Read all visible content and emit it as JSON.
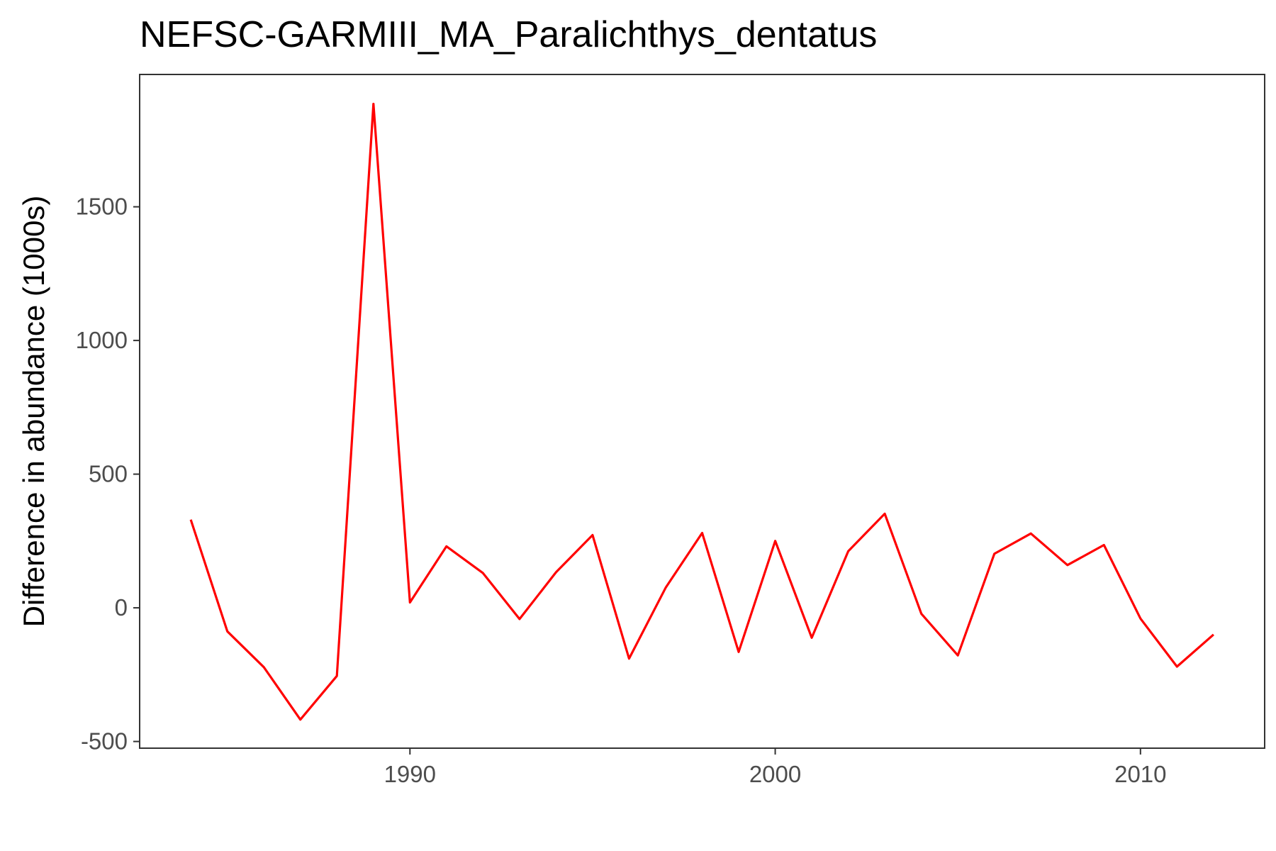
{
  "chart_data": {
    "type": "line",
    "title": "NEFSC-GARMIII_MA_Paralichthys_dentatus",
    "xlabel": "",
    "ylabel": "Difference in abundance (1000s)",
    "xlim": [
      1982.6,
      2013.4
    ],
    "ylim": [
      -525,
      1995
    ],
    "x_ticks": [
      1990,
      2000,
      2010
    ],
    "x_tick_labels": [
      "1990",
      "2000",
      "2010"
    ],
    "y_ticks": [
      -500,
      0,
      500,
      1000,
      1500
    ],
    "y_tick_labels": [
      "-500",
      "0",
      "500",
      "1000",
      "1500"
    ],
    "grid": false,
    "legend": "none",
    "series": [
      {
        "color": "#ff0000",
        "x": [
          1984,
          1985,
          1986,
          1987,
          1988,
          1989,
          1990,
          1991,
          1992,
          1993,
          1994,
          1995,
          1996,
          1997,
          1998,
          1999,
          2000,
          2001,
          2002,
          2003,
          2004,
          2005,
          2006,
          2007,
          2008,
          2009,
          2010,
          2011,
          2012
        ],
        "y": [
          330,
          -88,
          -222,
          -418,
          -255,
          1885,
          20,
          230,
          130,
          -42,
          133,
          272,
          -190,
          75,
          280,
          -165,
          250,
          -112,
          212,
          352,
          -22,
          -178,
          202,
          278,
          160,
          235,
          -40,
          -220,
          -100
        ]
      }
    ]
  }
}
